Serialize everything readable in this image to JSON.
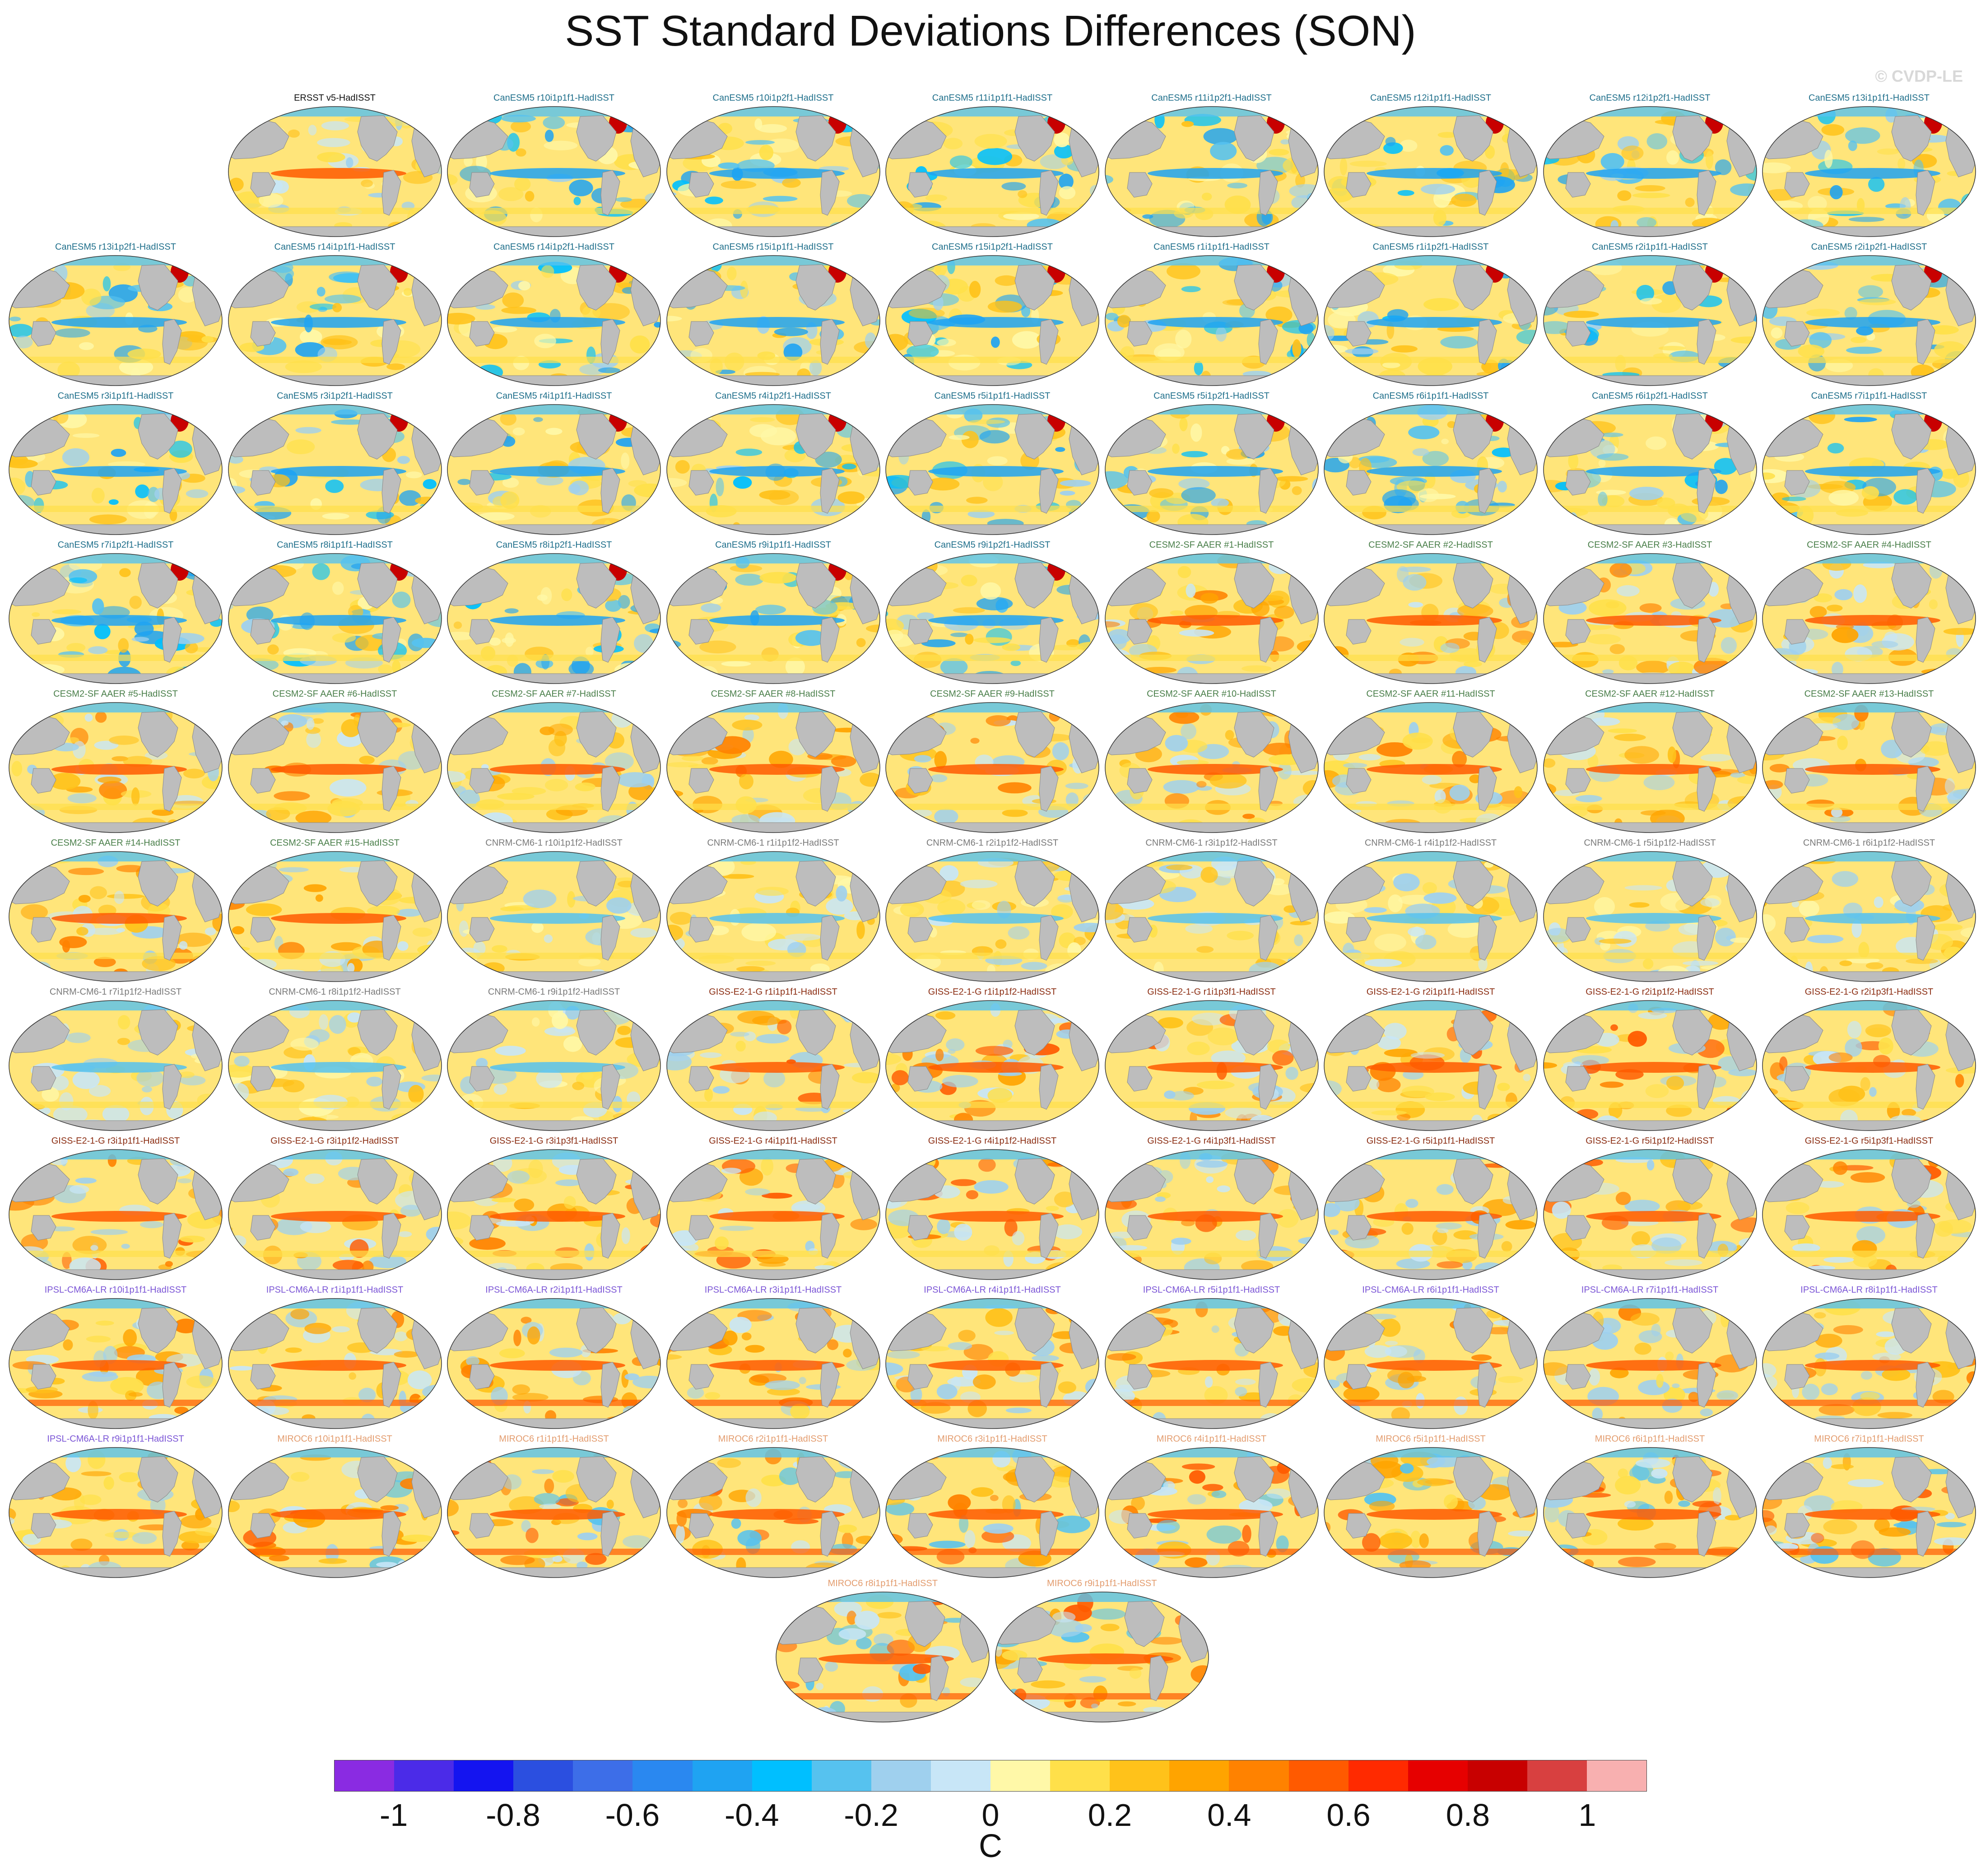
{
  "title": "SST Standard Deviations Differences (SON)",
  "credit": "© CVDP-LE",
  "colors": {
    "ersst": "#111111",
    "canesm5": "#1f6f8b",
    "cesm2": "#4a7f4a",
    "cnrm": "#7a7a7a",
    "giss": "#8b2d12",
    "ipsl": "#7b55d6",
    "miroc": "#e39c6e",
    "land": "#bdbdbd",
    "ocean_base": "#fde68a"
  },
  "chart_data": {
    "type": "heatmap",
    "description_free": true,
    "title": "SST Standard Deviations Differences (SON)",
    "colorbar": {
      "units": "C",
      "ticks": [
        "-1",
        "-0.8",
        "-0.6",
        "-0.4",
        "-0.2",
        "0",
        "0.2",
        "0.4",
        "0.6",
        "0.8",
        "1"
      ],
      "tick_values": [
        -1,
        -0.8,
        -0.6,
        -0.4,
        -0.2,
        0,
        0.2,
        0.4,
        0.6,
        0.8,
        1
      ],
      "range": [
        -1.1,
        1.1
      ],
      "colors": [
        "#8a2be2",
        "#4b2be8",
        "#1414f0",
        "#2b4fe0",
        "#3d6ee8",
        "#2a88f0",
        "#1fa3f2",
        "#00bfff",
        "#56c2ef",
        "#9fd0ee",
        "#c8e6f7",
        "#fff8a8",
        "#ffe04a",
        "#ffc21a",
        "#ffa400",
        "#ff8200",
        "#ff5a00",
        "#ff2a00",
        "#e60000",
        "#c80000",
        "#d84040",
        "#f8b0b0"
      ]
    },
    "panels": [
      {
        "label": "ERSST v5-HadISST",
        "group": "ersst"
      },
      {
        "label": "CanESM5 r10i1p1f1-HadISST",
        "group": "canesm5"
      },
      {
        "label": "CanESM5 r10i1p2f1-HadISST",
        "group": "canesm5"
      },
      {
        "label": "CanESM5 r11i1p1f1-HadISST",
        "group": "canesm5"
      },
      {
        "label": "CanESM5 r11i1p2f1-HadISST",
        "group": "canesm5"
      },
      {
        "label": "CanESM5 r12i1p1f1-HadISST",
        "group": "canesm5"
      },
      {
        "label": "CanESM5 r12i1p2f1-HadISST",
        "group": "canesm5"
      },
      {
        "label": "CanESM5 r13i1p1f1-HadISST",
        "group": "canesm5"
      },
      {
        "label": "CanESM5 r13i1p2f1-HadISST",
        "group": "canesm5"
      },
      {
        "label": "CanESM5 r14i1p1f1-HadISST",
        "group": "canesm5"
      },
      {
        "label": "CanESM5 r14i1p2f1-HadISST",
        "group": "canesm5"
      },
      {
        "label": "CanESM5 r15i1p1f1-HadISST",
        "group": "canesm5"
      },
      {
        "label": "CanESM5 r15i1p2f1-HadISST",
        "group": "canesm5"
      },
      {
        "label": "CanESM5 r1i1p1f1-HadISST",
        "group": "canesm5"
      },
      {
        "label": "CanESM5 r1i1p2f1-HadISST",
        "group": "canesm5"
      },
      {
        "label": "CanESM5 r2i1p1f1-HadISST",
        "group": "canesm5"
      },
      {
        "label": "CanESM5 r2i1p2f1-HadISST",
        "group": "canesm5"
      },
      {
        "label": "CanESM5 r3i1p1f1-HadISST",
        "group": "canesm5"
      },
      {
        "label": "CanESM5 r3i1p2f1-HadISST",
        "group": "canesm5"
      },
      {
        "label": "CanESM5 r4i1p1f1-HadISST",
        "group": "canesm5"
      },
      {
        "label": "CanESM5 r4i1p2f1-HadISST",
        "group": "canesm5"
      },
      {
        "label": "CanESM5 r5i1p1f1-HadISST",
        "group": "canesm5"
      },
      {
        "label": "CanESM5 r5i1p2f1-HadISST",
        "group": "canesm5"
      },
      {
        "label": "CanESM5 r6i1p1f1-HadISST",
        "group": "canesm5"
      },
      {
        "label": "CanESM5 r6i1p2f1-HadISST",
        "group": "canesm5"
      },
      {
        "label": "CanESM5 r7i1p1f1-HadISST",
        "group": "canesm5"
      },
      {
        "label": "CanESM5 r7i1p2f1-HadISST",
        "group": "canesm5"
      },
      {
        "label": "CanESM5 r8i1p1f1-HadISST",
        "group": "canesm5"
      },
      {
        "label": "CanESM5 r8i1p2f1-HadISST",
        "group": "canesm5"
      },
      {
        "label": "CanESM5 r9i1p1f1-HadISST",
        "group": "canesm5"
      },
      {
        "label": "CanESM5 r9i1p2f1-HadISST",
        "group": "canesm5"
      },
      {
        "label": "CESM2-SF AAER #1-HadISST",
        "group": "cesm2"
      },
      {
        "label": "CESM2-SF AAER #2-HadISST",
        "group": "cesm2"
      },
      {
        "label": "CESM2-SF AAER #3-HadISST",
        "group": "cesm2"
      },
      {
        "label": "CESM2-SF AAER #4-HadISST",
        "group": "cesm2"
      },
      {
        "label": "CESM2-SF AAER #5-HadISST",
        "group": "cesm2"
      },
      {
        "label": "CESM2-SF AAER #6-HadISST",
        "group": "cesm2"
      },
      {
        "label": "CESM2-SF AAER #7-HadISST",
        "group": "cesm2"
      },
      {
        "label": "CESM2-SF AAER #8-HadISST",
        "group": "cesm2"
      },
      {
        "label": "CESM2-SF AAER #9-HadISST",
        "group": "cesm2"
      },
      {
        "label": "CESM2-SF AAER #10-HadISST",
        "group": "cesm2"
      },
      {
        "label": "CESM2-SF AAER #11-HadISST",
        "group": "cesm2"
      },
      {
        "label": "CESM2-SF AAER #12-HadISST",
        "group": "cesm2"
      },
      {
        "label": "CESM2-SF AAER #13-HadISST",
        "group": "cesm2"
      },
      {
        "label": "CESM2-SF AAER #14-HadISST",
        "group": "cesm2"
      },
      {
        "label": "CESM2-SF AAER #15-HadISST",
        "group": "cesm2"
      },
      {
        "label": "CNRM-CM6-1 r10i1p1f2-HadISST",
        "group": "cnrm"
      },
      {
        "label": "CNRM-CM6-1 r1i1p1f2-HadISST",
        "group": "cnrm"
      },
      {
        "label": "CNRM-CM6-1 r2i1p1f2-HadISST",
        "group": "cnrm"
      },
      {
        "label": "CNRM-CM6-1 r3i1p1f2-HadISST",
        "group": "cnrm"
      },
      {
        "label": "CNRM-CM6-1 r4i1p1f2-HadISST",
        "group": "cnrm"
      },
      {
        "label": "CNRM-CM6-1 r5i1p1f2-HadISST",
        "group": "cnrm"
      },
      {
        "label": "CNRM-CM6-1 r6i1p1f2-HadISST",
        "group": "cnrm"
      },
      {
        "label": "CNRM-CM6-1 r7i1p1f2-HadISST",
        "group": "cnrm"
      },
      {
        "label": "CNRM-CM6-1 r8i1p1f2-HadISST",
        "group": "cnrm"
      },
      {
        "label": "CNRM-CM6-1 r9i1p1f2-HadISST",
        "group": "cnrm"
      },
      {
        "label": "GISS-E2-1-G r1i1p1f1-HadISST",
        "group": "giss"
      },
      {
        "label": "GISS-E2-1-G r1i1p1f2-HadISST",
        "group": "giss"
      },
      {
        "label": "GISS-E2-1-G r1i1p3f1-HadISST",
        "group": "giss"
      },
      {
        "label": "GISS-E2-1-G r2i1p1f1-HadISST",
        "group": "giss"
      },
      {
        "label": "GISS-E2-1-G r2i1p1f2-HadISST",
        "group": "giss"
      },
      {
        "label": "GISS-E2-1-G r2i1p3f1-HadISST",
        "group": "giss"
      },
      {
        "label": "GISS-E2-1-G r3i1p1f1-HadISST",
        "group": "giss"
      },
      {
        "label": "GISS-E2-1-G r3i1p1f2-HadISST",
        "group": "giss"
      },
      {
        "label": "GISS-E2-1-G r3i1p3f1-HadISST",
        "group": "giss"
      },
      {
        "label": "GISS-E2-1-G r4i1p1f1-HadISST",
        "group": "giss"
      },
      {
        "label": "GISS-E2-1-G r4i1p1f2-HadISST",
        "group": "giss"
      },
      {
        "label": "GISS-E2-1-G r4i1p3f1-HadISST",
        "group": "giss"
      },
      {
        "label": "GISS-E2-1-G r5i1p1f1-HadISST",
        "group": "giss"
      },
      {
        "label": "GISS-E2-1-G r5i1p1f2-HadISST",
        "group": "giss"
      },
      {
        "label": "GISS-E2-1-G r5i1p3f1-HadISST",
        "group": "giss"
      },
      {
        "label": "IPSL-CM6A-LR r10i1p1f1-HadISST",
        "group": "ipsl"
      },
      {
        "label": "IPSL-CM6A-LR r1i1p1f1-HadISST",
        "group": "ipsl"
      },
      {
        "label": "IPSL-CM6A-LR r2i1p1f1-HadISST",
        "group": "ipsl"
      },
      {
        "label": "IPSL-CM6A-LR r3i1p1f1-HadISST",
        "group": "ipsl"
      },
      {
        "label": "IPSL-CM6A-LR r4i1p1f1-HadISST",
        "group": "ipsl"
      },
      {
        "label": "IPSL-CM6A-LR r5i1p1f1-HadISST",
        "group": "ipsl"
      },
      {
        "label": "IPSL-CM6A-LR r6i1p1f1-HadISST",
        "group": "ipsl"
      },
      {
        "label": "IPSL-CM6A-LR r7i1p1f1-HadISST",
        "group": "ipsl"
      },
      {
        "label": "IPSL-CM6A-LR r8i1p1f1-HadISST",
        "group": "ipsl"
      },
      {
        "label": "IPSL-CM6A-LR r9i1p1f1-HadISST",
        "group": "ipsl"
      },
      {
        "label": "MIROC6 r10i1p1f1-HadISST",
        "group": "miroc"
      },
      {
        "label": "MIROC6 r1i1p1f1-HadISST",
        "group": "miroc"
      },
      {
        "label": "MIROC6 r2i1p1f1-HadISST",
        "group": "miroc"
      },
      {
        "label": "MIROC6 r3i1p1f1-HadISST",
        "group": "miroc"
      },
      {
        "label": "MIROC6 r4i1p1f1-HadISST",
        "group": "miroc"
      },
      {
        "label": "MIROC6 r5i1p1f1-HadISST",
        "group": "miroc"
      },
      {
        "label": "MIROC6 r6i1p1f1-HadISST",
        "group": "miroc"
      },
      {
        "label": "MIROC6 r7i1p1f1-HadISST",
        "group": "miroc"
      },
      {
        "label": "MIROC6 r8i1p1f1-HadISST",
        "group": "miroc"
      },
      {
        "label": "MIROC6 r9i1p1f1-HadISST",
        "group": "miroc"
      }
    ]
  }
}
